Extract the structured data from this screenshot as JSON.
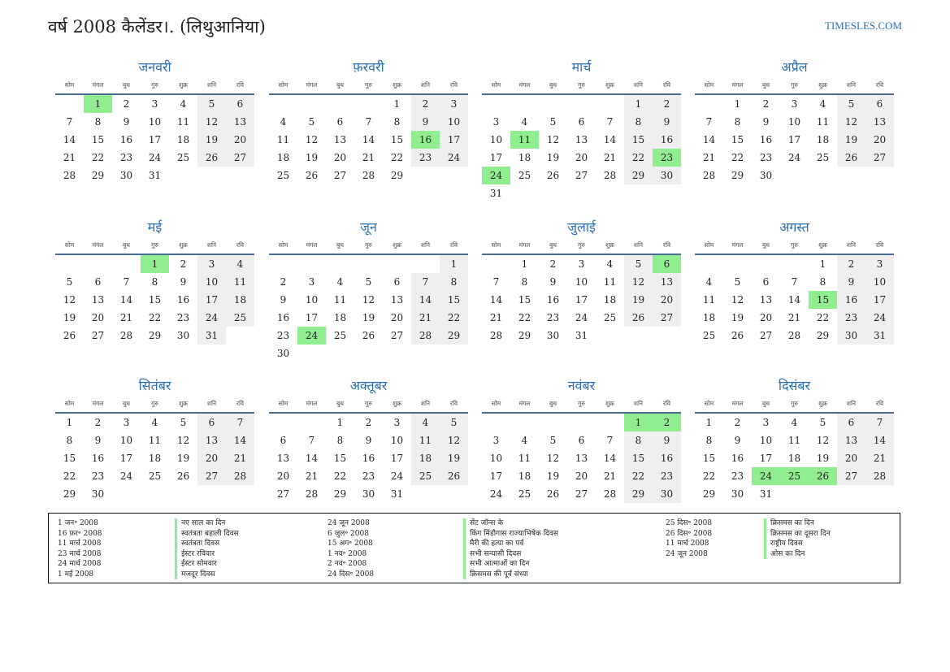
{
  "header": {
    "title": "वर्ष 2008 कैलेंडर।. (लिथुआनिया)",
    "site": "TIMESLES.COM"
  },
  "weekdays": [
    "सोम",
    "मंगल",
    "बुध",
    "गुरु",
    "शुक्र",
    "शनि",
    "रवि"
  ],
  "colors": {
    "accent": "#2a6fb0",
    "holiday": "#90ee90",
    "weekend": "#efefef"
  },
  "months": [
    {
      "name": "जनवरी",
      "start": 1,
      "days": 31,
      "holidays": [
        1
      ]
    },
    {
      "name": "फ़रवरी",
      "start": 4,
      "days": 29,
      "holidays": [
        16
      ]
    },
    {
      "name": "मार्च",
      "start": 5,
      "days": 31,
      "holidays": [
        11,
        23,
        24
      ]
    },
    {
      "name": "अप्रैल",
      "start": 1,
      "days": 30,
      "holidays": []
    },
    {
      "name": "मई",
      "start": 3,
      "days": 31,
      "holidays": [
        1
      ]
    },
    {
      "name": "जून",
      "start": 6,
      "days": 30,
      "holidays": [
        24
      ]
    },
    {
      "name": "जुलाई",
      "start": 1,
      "days": 31,
      "holidays": [
        6
      ]
    },
    {
      "name": "अगस्त",
      "start": 4,
      "days": 31,
      "holidays": [
        15
      ]
    },
    {
      "name": "सितंबर",
      "start": 0,
      "days": 30,
      "holidays": []
    },
    {
      "name": "अक्तूबर",
      "start": 2,
      "days": 31,
      "holidays": []
    },
    {
      "name": "नवंबर",
      "start": 5,
      "days": 30,
      "holidays": [
        1,
        2
      ]
    },
    {
      "name": "दिसंबर",
      "start": 0,
      "days": 31,
      "holidays": [
        24,
        25,
        26
      ]
    }
  ],
  "legend": [
    [
      {
        "date": "1 जन॰ 2008",
        "name": "नए साल का दिन"
      },
      {
        "date": "16 फ़र॰ 2008",
        "name": "स्वतंत्रता बहाली दिवस"
      },
      {
        "date": "11 मार्च 2008",
        "name": "स्वतंत्रता दिवस"
      },
      {
        "date": "23 मार्च 2008",
        "name": "ईस्टर रविवार"
      },
      {
        "date": "24 मार्च 2008",
        "name": "ईस्टर सोमवार"
      },
      {
        "date": "1 मई 2008",
        "name": "मजदूर दिवस"
      }
    ],
    [
      {
        "date": "24 जून 2008",
        "name": "सेंट जॉन्स के"
      },
      {
        "date": "6 जुल॰ 2008",
        "name": "किंग मिंडौगास राज्याभिषेक दिवस"
      },
      {
        "date": "15 अग॰ 2008",
        "name": "मैरी की हत्या का पर्व"
      },
      {
        "date": "1 नव॰ 2008",
        "name": "सभी सन्यासी दिवस"
      },
      {
        "date": "2 नव॰ 2008",
        "name": "सभी आत्माओं का दिन"
      },
      {
        "date": "24 दिस॰ 2008",
        "name": "क्रिसमस की पूर्व संध्या"
      }
    ],
    [
      {
        "date": "25 दिस॰ 2008",
        "name": "क्रिसमस का दिन"
      },
      {
        "date": "26 दिस॰ 2008",
        "name": "क्रिसमस का दूसरा दिन"
      },
      {
        "date": "11 मार्च 2008",
        "name": "राष्ट्रीय दिवस"
      },
      {
        "date": "24 जून 2008",
        "name": "ओस का दिन"
      }
    ]
  ]
}
